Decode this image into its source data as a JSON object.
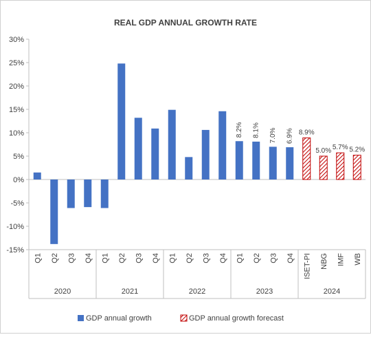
{
  "chart_data": {
    "type": "bar",
    "title": "REAL GDP ANNUAL GROWTH RATE",
    "ylim": [
      -15,
      30
    ],
    "yticks": [
      -15,
      -10,
      -5,
      0,
      5,
      10,
      15,
      20,
      25,
      30
    ],
    "ytick_labels": [
      "-15%",
      "-10%",
      "-5%",
      "0%",
      "5%",
      "10%",
      "15%",
      "20%",
      "25%",
      "30%"
    ],
    "grid": false,
    "legend_position": "bottom",
    "colors": {
      "actual": "#4472C4",
      "forecast": "#C00000"
    },
    "categories": [
      "Q1",
      "Q2",
      "Q3",
      "Q4",
      "Q1",
      "Q2",
      "Q3",
      "Q4",
      "Q1",
      "Q2",
      "Q3",
      "Q4",
      "Q1",
      "Q2",
      "Q3",
      "Q4",
      "ISET-PI",
      "NBG",
      "IMF",
      "WB"
    ],
    "groups": [
      {
        "label": "2020",
        "count": 4
      },
      {
        "label": "2021",
        "count": 4
      },
      {
        "label": "2022",
        "count": 4
      },
      {
        "label": "2023",
        "count": 4
      },
      {
        "label": "2024",
        "count": 4
      }
    ],
    "series": [
      {
        "name": "GDP annual growth",
        "style": "solid",
        "values": [
          1.5,
          -13.8,
          -6.1,
          -5.9,
          -6.1,
          24.8,
          13.2,
          10.9,
          14.9,
          4.8,
          10.6,
          14.6,
          8.2,
          8.1,
          7.0,
          6.9,
          null,
          null,
          null,
          null
        ],
        "labels": [
          null,
          null,
          null,
          null,
          null,
          null,
          null,
          null,
          null,
          null,
          null,
          null,
          "8.2%",
          "8.1%",
          "7.0%",
          "6.9%",
          null,
          null,
          null,
          null
        ]
      },
      {
        "name": "GDP annual growth forecast",
        "style": "hatched",
        "values": [
          null,
          null,
          null,
          null,
          null,
          null,
          null,
          null,
          null,
          null,
          null,
          null,
          null,
          null,
          null,
          null,
          8.9,
          5.0,
          5.7,
          5.2
        ],
        "labels": [
          null,
          null,
          null,
          null,
          null,
          null,
          null,
          null,
          null,
          null,
          null,
          null,
          null,
          null,
          null,
          null,
          "8.9%",
          "5.0%",
          "5.7%",
          "5.2%"
        ]
      }
    ]
  }
}
